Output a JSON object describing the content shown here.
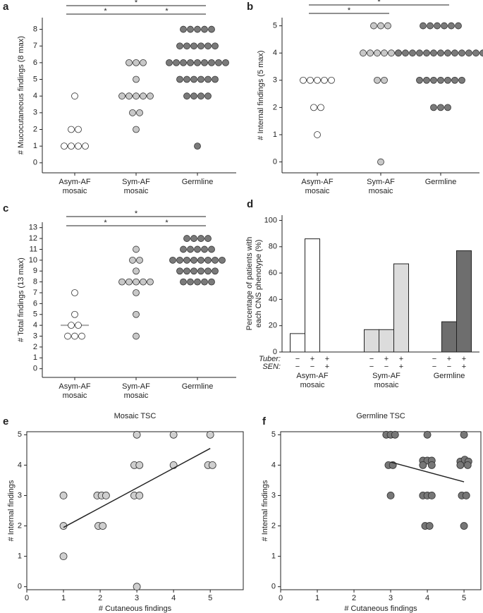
{
  "chart_data": [
    {
      "type": "dot",
      "panel_label": "a",
      "ylabel": "# Mucocutaneous findings (8 max)",
      "categories": [
        "Asym-AF mosaic",
        "Sym-AF mosaic",
        "Germline"
      ],
      "colors": [
        "#ffffff",
        "#c8c8c8",
        "#7a7a7a"
      ],
      "values": [
        [
          4,
          2,
          2,
          1,
          1,
          1,
          1
        ],
        [
          6,
          6,
          6,
          5,
          4,
          4,
          4,
          4,
          4,
          3,
          3,
          2
        ],
        [
          8,
          8,
          8,
          8,
          8,
          7,
          7,
          7,
          7,
          7,
          7,
          6,
          6,
          6,
          6,
          6,
          6,
          6,
          6,
          6,
          5,
          5,
          5,
          5,
          5,
          5,
          4,
          4,
          4,
          4,
          1
        ]
      ],
      "medians": [
        1,
        4,
        6
      ],
      "ylim": [
        -0.6,
        8.7
      ],
      "yticks": [
        0,
        1,
        2,
        3,
        4,
        5,
        6,
        7,
        8
      ],
      "significance": [
        {
          "from": 0,
          "to": 2,
          "label": "*"
        },
        {
          "from": 0,
          "to": 1,
          "label": "*"
        },
        {
          "from": 1,
          "to": 2,
          "label": "*"
        }
      ]
    },
    {
      "type": "dot",
      "panel_label": "b",
      "ylabel": "# Internal findings (5 max)",
      "categories": [
        "Asym-AF mosaic",
        "Sym-AF mosaic",
        "Germline"
      ],
      "colors": [
        "#ffffff",
        "#c8c8c8",
        "#7a7a7a"
      ],
      "values": [
        [
          3,
          3,
          3,
          3,
          3,
          2,
          2,
          1
        ],
        [
          5,
          5,
          5,
          4,
          4,
          4,
          4,
          4,
          4,
          3,
          3,
          0
        ],
        [
          5,
          5,
          5,
          5,
          5,
          5,
          4,
          4,
          4,
          4,
          4,
          4,
          4,
          4,
          4,
          4,
          4,
          4,
          4,
          3,
          3,
          3,
          3,
          3,
          3,
          3,
          2,
          2,
          2
        ]
      ],
      "medians": [
        3,
        4,
        4
      ],
      "ylim": [
        -0.4,
        5.3
      ],
      "yticks": [
        0,
        1,
        2,
        3,
        4,
        5
      ],
      "significance": [
        {
          "from": 0,
          "to": 2,
          "label": "*"
        },
        {
          "from": 0,
          "to": 1,
          "label": "*"
        }
      ]
    },
    {
      "type": "dot",
      "panel_label": "c",
      "ylabel": "# Total findings (13 max)",
      "categories": [
        "Asym-AF mosaic",
        "Sym-AF mosaic",
        "Germline"
      ],
      "colors": [
        "#ffffff",
        "#c8c8c8",
        "#7a7a7a"
      ],
      "values": [
        [
          7,
          5,
          4,
          4,
          3,
          3,
          3
        ],
        [
          11,
          10,
          10,
          9,
          8,
          8,
          8,
          8,
          8,
          7,
          5,
          3
        ],
        [
          12,
          12,
          12,
          12,
          11,
          11,
          11,
          11,
          11,
          10,
          10,
          10,
          10,
          10,
          10,
          10,
          10,
          9,
          9,
          9,
          9,
          9,
          9,
          8,
          8,
          8,
          8,
          8
        ]
      ],
      "medians": [
        4,
        8,
        10
      ],
      "ylim": [
        -0.8,
        13.5
      ],
      "yticks": [
        0,
        1,
        2,
        3,
        4,
        5,
        6,
        7,
        8,
        9,
        10,
        11,
        12,
        13
      ],
      "significance": [
        {
          "from": 0,
          "to": 2,
          "label": "*"
        },
        {
          "from": 0,
          "to": 1,
          "label": "*"
        },
        {
          "from": 1,
          "to": 2,
          "label": "*"
        }
      ]
    },
    {
      "type": "bar",
      "panel_label": "d",
      "ylabel": "Percentage of patients with each CNS phenotype (%)",
      "categories": [
        "Asym-AF mosaic",
        "Sym-AF mosaic",
        "Germline"
      ],
      "colors": [
        "#ffffff",
        "#dcdcdc",
        "#6e6e6e"
      ],
      "values": [
        [
          14,
          86,
          0
        ],
        [
          17,
          17,
          67
        ],
        [
          0,
          23,
          77
        ]
      ],
      "row_labels": [
        "Tuber:",
        "SEN:"
      ],
      "row_symbols": [
        [
          "−",
          "+",
          "+"
        ],
        [
          "−",
          "−",
          "+"
        ]
      ],
      "ylim": [
        0,
        104
      ],
      "yticks": [
        0,
        20,
        40,
        60,
        80,
        100
      ]
    },
    {
      "type": "scatter",
      "panel_label": "e",
      "title": "Mosaic TSC",
      "xlabel": "# Cutaneous findings",
      "ylabel": "# Internal findings",
      "color": "#cfcfcf",
      "x": [
        1,
        1,
        1,
        1.92,
        2.04,
        2.16,
        1.95,
        2.07,
        3,
        2.93,
        3.07,
        2.93,
        3.07,
        3,
        4,
        4,
        5,
        4.94,
        5.06
      ],
      "y": [
        3,
        2,
        1,
        3,
        3,
        3,
        2,
        2,
        5,
        4,
        4,
        3,
        3,
        0,
        5,
        4,
        5,
        4,
        4
      ],
      "trendline": {
        "x": [
          1,
          5
        ],
        "y": [
          1.95,
          4.55
        ]
      },
      "xlim": [
        0,
        5.9
      ],
      "ylim": [
        -0.1,
        5.1
      ],
      "xticks": [
        0,
        1,
        2,
        3,
        4,
        5
      ],
      "yticks": [
        0,
        1,
        2,
        3,
        4,
        5
      ]
    },
    {
      "type": "scatter",
      "panel_label": "f",
      "title": "Germline TSC",
      "xlabel": "# Cutaneous findings",
      "ylabel": "# Internal findings",
      "color": "#777777",
      "x": [
        2.88,
        3,
        3.12,
        2.94,
        3.06,
        3,
        4,
        3.88,
        4,
        4.12,
        3.88,
        4.12,
        3.88,
        4,
        4.12,
        3.94,
        4.06,
        5,
        4.9,
        5.02,
        5.12,
        4.9,
        5.1,
        4.94,
        5.06,
        5
      ],
      "y": [
        5,
        5,
        5,
        4,
        4,
        3,
        5,
        4.15,
        4.15,
        4.15,
        4,
        4,
        3,
        3,
        3,
        2,
        2,
        5,
        4.12,
        4.18,
        4.12,
        4,
        4,
        3,
        3,
        2
      ],
      "trendline": {
        "x": [
          3,
          5
        ],
        "y": [
          4.1,
          3.45
        ]
      },
      "xlim": [
        0,
        5.46
      ],
      "ylim": [
        -0.1,
        5.1
      ],
      "xticks": [
        0,
        1,
        2,
        3,
        4,
        5
      ],
      "yticks": [
        0,
        1,
        2,
        3,
        4,
        5
      ]
    }
  ]
}
